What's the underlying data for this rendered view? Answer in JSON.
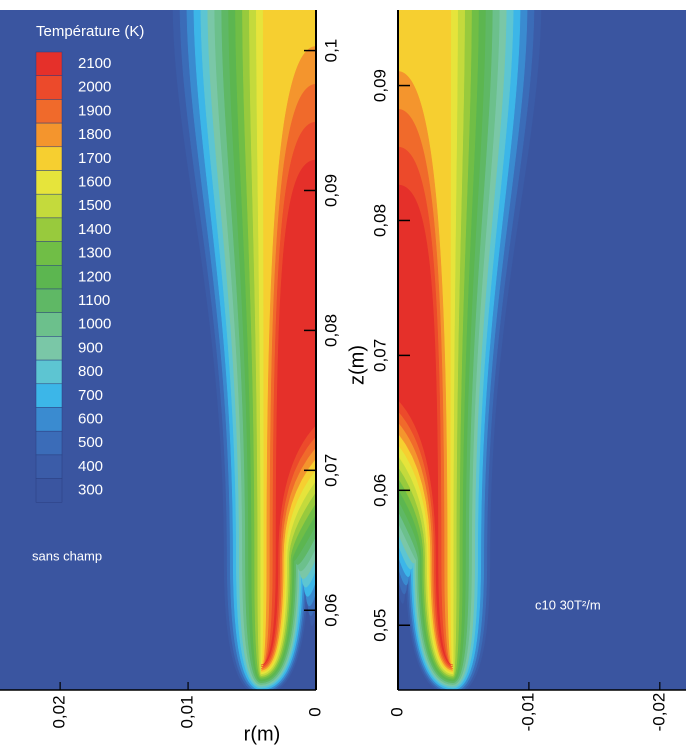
{
  "chart_data": {
    "type": "contour",
    "legend": {
      "title": "Température (K)",
      "levels": [
        {
          "value": 2100,
          "color": "#e5302a"
        },
        {
          "value": 2000,
          "color": "#ec4a2b"
        },
        {
          "value": 1900,
          "color": "#f06a2b"
        },
        {
          "value": 1800,
          "color": "#f4952d"
        },
        {
          "value": 1700,
          "color": "#f6cf30"
        },
        {
          "value": 1600,
          "color": "#e6e43b"
        },
        {
          "value": 1500,
          "color": "#c4da3c"
        },
        {
          "value": 1400,
          "color": "#98ca3d"
        },
        {
          "value": 1300,
          "color": "#70be46"
        },
        {
          "value": 1200,
          "color": "#5cb650"
        },
        {
          "value": 1100,
          "color": "#5fb865"
        },
        {
          "value": 1000,
          "color": "#6cc08c"
        },
        {
          "value": 900,
          "color": "#7ac7a7"
        },
        {
          "value": 800,
          "color": "#5dc5d2"
        },
        {
          "value": 700,
          "color": "#3cb6e8"
        },
        {
          "value": 600,
          "color": "#3a8bd0"
        },
        {
          "value": 500,
          "color": "#3b6cb8"
        },
        {
          "value": 400,
          "color": "#3b5ca8"
        },
        {
          "value": 300,
          "color": "#3a55a0"
        }
      ]
    },
    "xlabel": "r(m)",
    "ylabel": "z(m)",
    "panels": [
      {
        "annotation": "sans champ",
        "xlim": [
          0.0247,
          0
        ],
        "ylim": [
          0.0543,
          0.1029
        ],
        "xticks": [
          {
            "value": 0.02,
            "label": "0,02"
          },
          {
            "value": 0.01,
            "label": "0,01"
          },
          0
        ],
        "yticks": [
          {
            "value": 0.1,
            "label": "0,1"
          },
          {
            "value": 0.09,
            "label": "0,09"
          },
          {
            "value": 0.08,
            "label": "0,08"
          },
          {
            "value": 0.07,
            "label": "0,07"
          },
          {
            "value": 0.06,
            "label": "0,06"
          }
        ]
      },
      {
        "annotation": "c10 30T²/m",
        "xlim": [
          0,
          -0.022
        ],
        "ylim": [
          0.0452,
          0.0956
        ],
        "xticks": [
          0,
          {
            "value": -0.01,
            "label": "-0,01"
          },
          {
            "value": -0.02,
            "label": "-0,02"
          }
        ],
        "yticks": [
          {
            "value": 0.09,
            "label": "0,09"
          },
          {
            "value": 0.08,
            "label": "0,08"
          },
          {
            "value": 0.07,
            "label": "0,07"
          },
          {
            "value": 0.06,
            "label": "0,06"
          },
          {
            "value": 0.05,
            "label": "0,05"
          }
        ]
      }
    ]
  }
}
